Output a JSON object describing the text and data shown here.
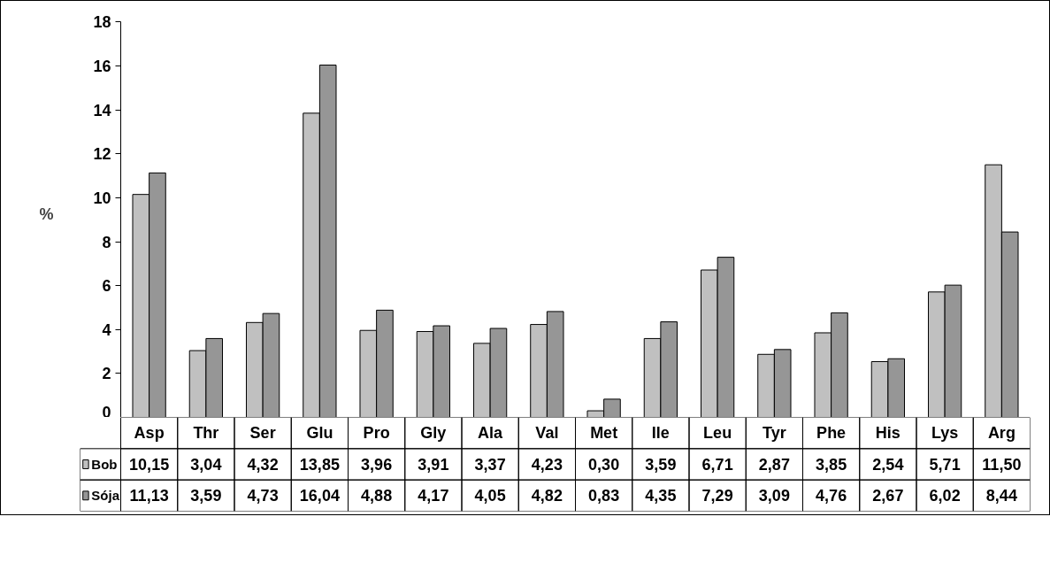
{
  "chart_data": {
    "type": "bar",
    "ylabel": "%",
    "categories": [
      "Asp",
      "Thr",
      "Ser",
      "Glu",
      "Pro",
      "Gly",
      "Ala",
      "Val",
      "Met",
      "Ile",
      "Leu",
      "Tyr",
      "Phe",
      "His",
      "Lys",
      "Arg"
    ],
    "series": [
      {
        "name": "Bob",
        "color": "#c0c0c0",
        "values": [
          10.15,
          3.04,
          4.32,
          13.85,
          3.96,
          3.91,
          3.37,
          4.23,
          0.3,
          3.59,
          6.71,
          2.87,
          3.85,
          2.54,
          5.71,
          11.5
        ],
        "value_labels": [
          "10,15",
          "3,04",
          "4,32",
          "13,85",
          "3,96",
          "3,91",
          "3,37",
          "4,23",
          "0,30",
          "3,59",
          "6,71",
          "2,87",
          "3,85",
          "2,54",
          "5,71",
          "11,50"
        ]
      },
      {
        "name": "Sója",
        "color": "#969696",
        "values": [
          11.13,
          3.59,
          4.73,
          16.04,
          4.88,
          4.17,
          4.05,
          4.82,
          0.83,
          4.35,
          7.29,
          3.09,
          4.76,
          2.67,
          6.02,
          8.44
        ],
        "value_labels": [
          "11,13",
          "3,59",
          "4,73",
          "16,04",
          "4,88",
          "4,17",
          "4,05",
          "4,82",
          "0,83",
          "4,35",
          "7,29",
          "3,09",
          "4,76",
          "2,67",
          "6,02",
          "8,44"
        ]
      }
    ],
    "ylim": [
      0,
      18
    ],
    "yticks": [
      0,
      2,
      4,
      6,
      8,
      10,
      12,
      14,
      16,
      18
    ],
    "grid": false,
    "legend": "bottom"
  }
}
